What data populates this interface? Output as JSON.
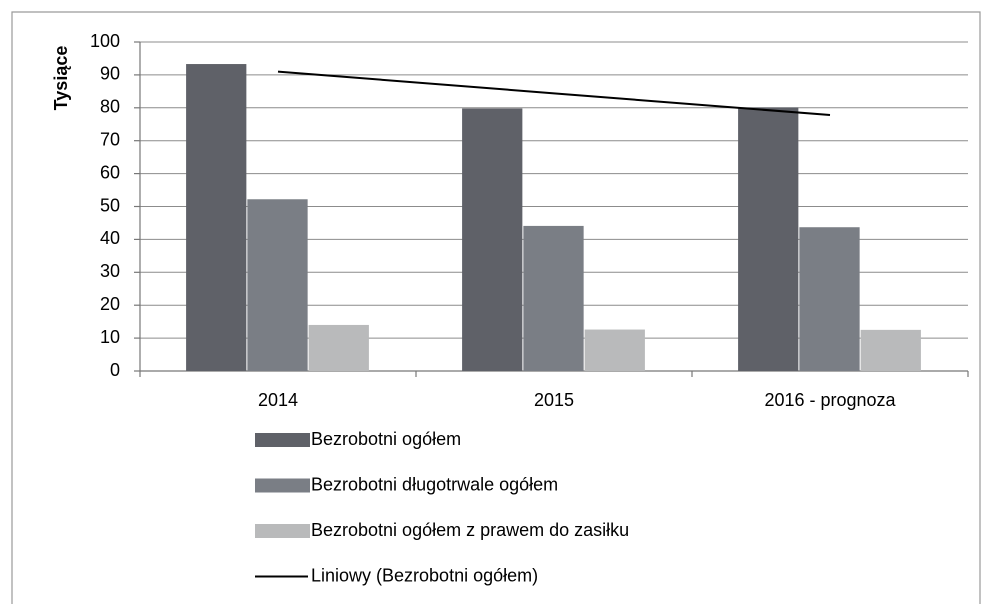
{
  "chart_data": {
    "type": "bar",
    "y_label": "Tysiące",
    "categories": [
      "2014",
      "2015",
      "2016 - prognoza"
    ],
    "series": [
      {
        "name": "Bezrobotni ogółem",
        "color": "#5f6168",
        "values": [
          93.3,
          79.8,
          80.1
        ]
      },
      {
        "name": "Bezrobotni długotrwale ogółem",
        "color": "#7a7e85",
        "values": [
          52.2,
          44.1,
          43.7
        ]
      },
      {
        "name": "Bezrobotni ogółem z prawem do zasiłku",
        "color": "#b9babb",
        "values": [
          14,
          12.6,
          12.5
        ]
      },
      {
        "name": "Liniowy (Bezrobotni ogółem)",
        "color": "#000000",
        "type": "line",
        "values": [
          91.0,
          84.4,
          77.8
        ]
      }
    ],
    "ylim": [
      0,
      100
    ],
    "yticks": [
      0,
      10,
      20,
      30,
      40,
      50,
      60,
      70,
      80,
      90,
      100
    ],
    "grid": true,
    "legend": "bottom"
  }
}
